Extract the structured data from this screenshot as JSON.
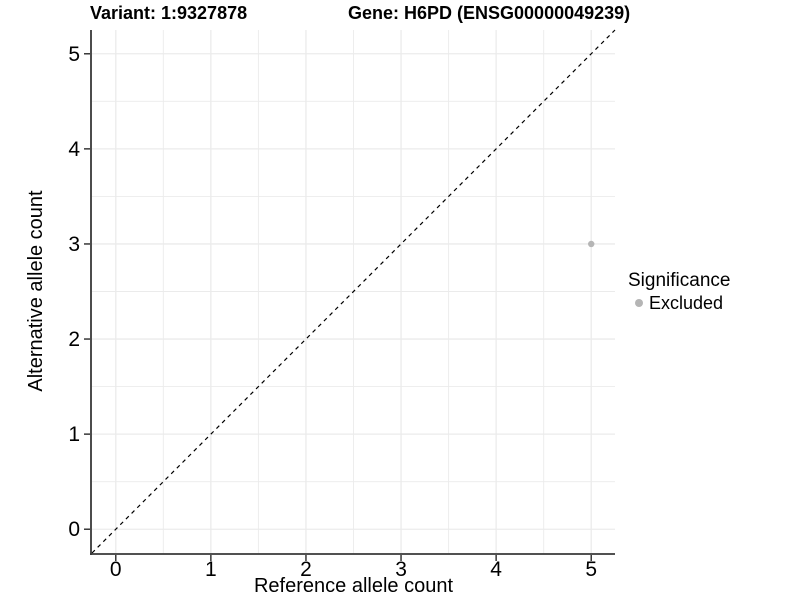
{
  "chart_data": {
    "type": "scatter",
    "title_left": "Variant: 1:9327878",
    "title_right": "Gene: H6PD (ENSG00000049239)",
    "xlabel": "Reference allele count",
    "ylabel": "Alternative allele count",
    "xlim": [
      -0.25,
      5.25
    ],
    "ylim": [
      -0.25,
      5.25
    ],
    "x_ticks": [
      0,
      1,
      2,
      3,
      4,
      5
    ],
    "y_ticks": [
      0,
      1,
      2,
      3,
      4,
      5
    ],
    "grid_step": 0.5,
    "grid_on": true,
    "points": [
      {
        "x": 5,
        "y": 3,
        "series": "Excluded"
      }
    ],
    "reference_line": {
      "type": "identity",
      "style": "dashed"
    },
    "legend": {
      "title": "Significance",
      "position": "right",
      "items": [
        {
          "label": "Excluded",
          "color": "#b5b5b5"
        }
      ]
    },
    "colors": {
      "point_excluded": "#b5b5b5",
      "gridline": "#ebebeb",
      "axis_line": "#383838",
      "reference_line": "#000000",
      "text": "#000000",
      "background": "#ffffff"
    }
  }
}
